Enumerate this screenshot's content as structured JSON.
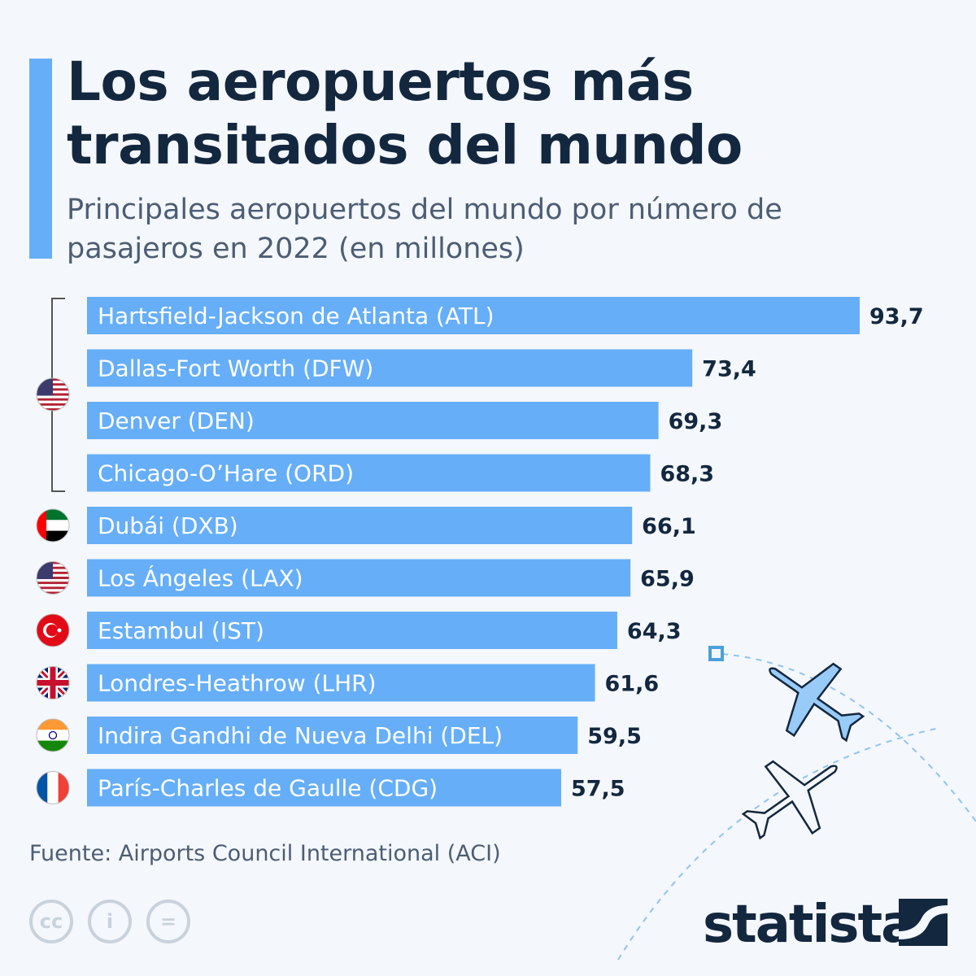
{
  "title": "Los aeropuertos más transitados del mundo",
  "subtitle": "Principales aeropuertos del mundo por número de pasajeros en 2022 (en millones)",
  "source": "Fuente: Airports Council International (ACI)",
  "logo": "statista",
  "license_icons": [
    "cc-icon",
    "attribution-icon",
    "no-derivatives-icon"
  ],
  "colors": {
    "bar": "#66aef8",
    "title": "#13273f",
    "background": "#f4f7fb"
  },
  "chart_data": {
    "type": "bar",
    "orientation": "horizontal",
    "categories": [
      "Hartsfield-Jackson de Atlanta (ATL)",
      "Dallas-Fort Worth (DFW)",
      "Denver (DEN)",
      "Chicago-O’Hare (ORD)",
      "Dubái (DXB)",
      "Los Ángeles (LAX)",
      "Estambul (IST)",
      "Londres-Heathrow (LHR)",
      "Indira Gandhi de Nueva Delhi (DEL)",
      "París-Charles de Gaulle (CDG)"
    ],
    "values": [
      93.7,
      73.4,
      69.3,
      68.3,
      66.1,
      65.9,
      64.3,
      61.6,
      59.5,
      57.5
    ],
    "value_labels": [
      "93,7",
      "73,4",
      "69,3",
      "68,3",
      "66,1",
      "65,9",
      "64,3",
      "61,6",
      "59,5",
      "57,5"
    ],
    "countries": [
      "us",
      "us",
      "us",
      "us",
      "ae",
      "us",
      "tr",
      "gb",
      "in",
      "fr"
    ],
    "xlim": [
      0,
      93.7
    ],
    "grid": false,
    "legend": "none"
  }
}
